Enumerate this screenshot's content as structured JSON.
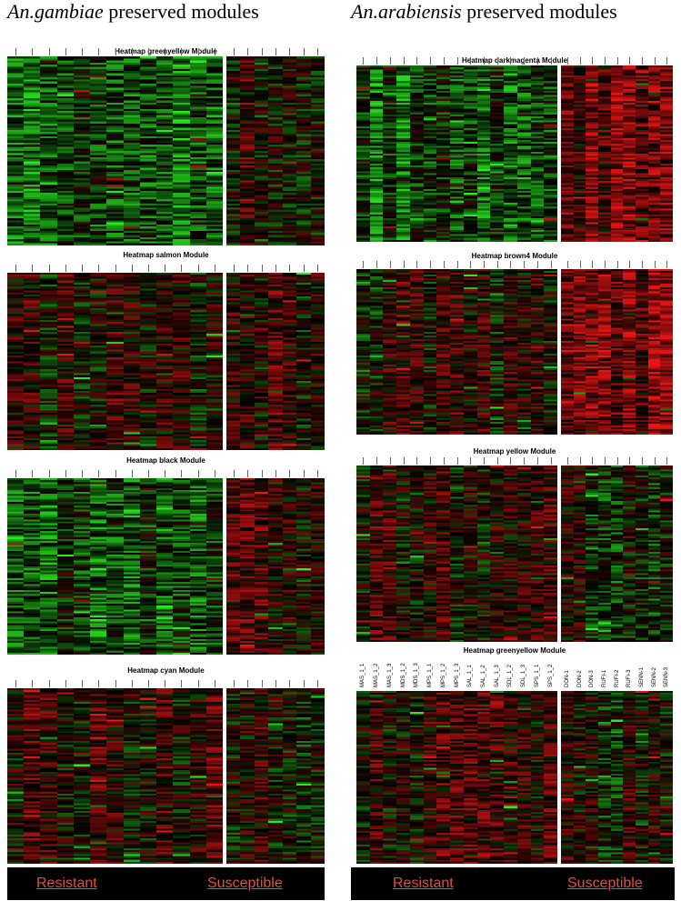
{
  "columns": [
    {
      "species": "An.gambiae",
      "heading": " preserved modules",
      "panels": [
        {
          "title": "Heatmap greenyellow Module"
        },
        {
          "title": "Heatmap salmon Module"
        },
        {
          "title": "Heatmap black Module"
        },
        {
          "title": "Heatmap cyan Module"
        }
      ],
      "footer": {
        "resistant": "Resistant",
        "susceptible": "Susceptible"
      }
    },
    {
      "species": "An.arabiensis",
      "heading": " preserved modules",
      "panels": [
        {
          "title": "Heatmap darkmagenta Module"
        },
        {
          "title": "Heatmap brown4 Module"
        },
        {
          "title": "Heatmap yellow Module"
        },
        {
          "title": "Heatmap greenyellow Module",
          "column_labels": {
            "resistant": [
              "MAS_1_1",
              "MAS_1_2",
              "MAS_1_3",
              "MDS_1_2",
              "MDS_1_3",
              "MPS_1_1",
              "MPS_1_2",
              "MPS_1_3",
              "SAL_1_1",
              "SAL_1_2",
              "SAL_1_3",
              "SDL_1_2",
              "SDL_1_3",
              "SPS_1_1",
              "SPS_1_2"
            ],
            "susceptible": [
              "DON-1",
              "DON-2",
              "DON-3",
              "RUFI-1",
              "RUFI-2",
              "RUFI-3",
              "SENN-1",
              "SENN-2",
              "SENN-3"
            ]
          }
        }
      ],
      "footer": {
        "resistant": "Resistant",
        "susceptible": "Susceptible"
      }
    }
  ]
}
